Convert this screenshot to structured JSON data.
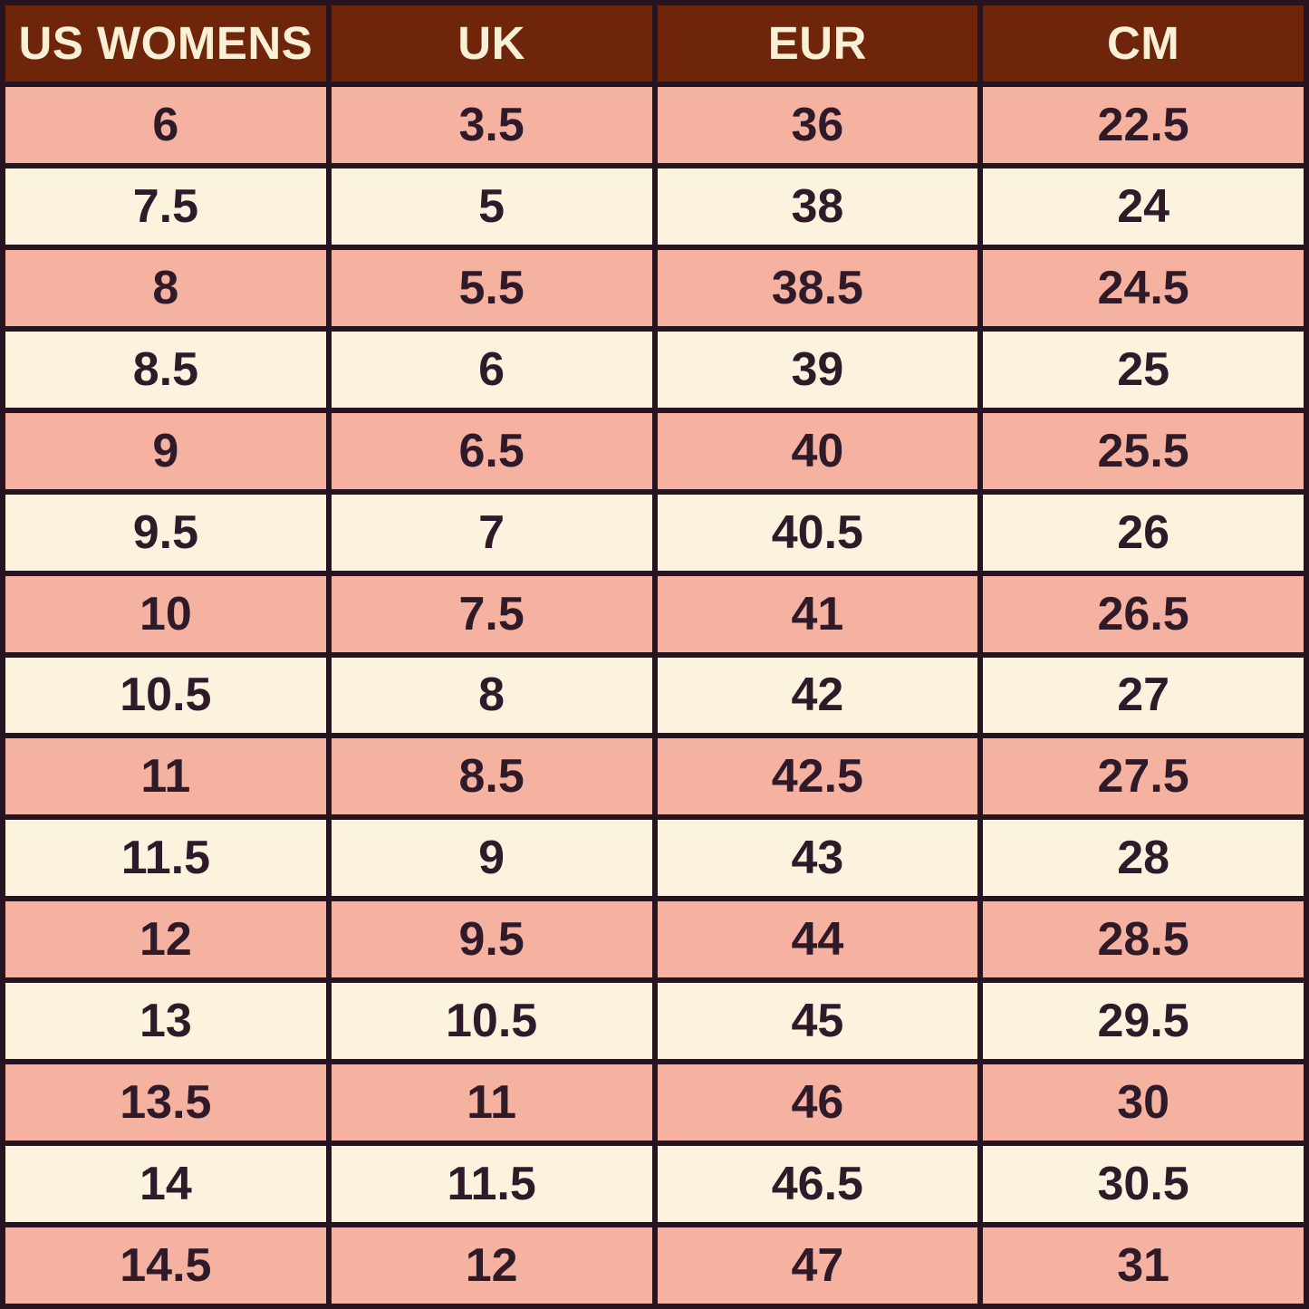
{
  "colors": {
    "header_bg": "#6E2509",
    "header_text": "#FAF0D6",
    "row_salmon": "#F5B2A0",
    "row_cream": "#FBF3DE",
    "cell_text": "#2E1A29",
    "border": "#261420"
  },
  "chart_data": {
    "type": "table",
    "columns": [
      "US WOMENS",
      "UK",
      "EUR",
      "CM"
    ],
    "rows": [
      [
        "6",
        "3.5",
        "36",
        "22.5"
      ],
      [
        "7.5",
        "5",
        "38",
        "24"
      ],
      [
        "8",
        "5.5",
        "38.5",
        "24.5"
      ],
      [
        "8.5",
        "6",
        "39",
        "25"
      ],
      [
        "9",
        "6.5",
        "40",
        "25.5"
      ],
      [
        "9.5",
        "7",
        "40.5",
        "26"
      ],
      [
        "10",
        "7.5",
        "41",
        "26.5"
      ],
      [
        "10.5",
        "8",
        "42",
        "27"
      ],
      [
        "11",
        "8.5",
        "42.5",
        "27.5"
      ],
      [
        "11.5",
        "9",
        "43",
        "28"
      ],
      [
        "12",
        "9.5",
        "44",
        "28.5"
      ],
      [
        "13",
        "10.5",
        "45",
        "29.5"
      ],
      [
        "13.5",
        "11",
        "46",
        "30"
      ],
      [
        "14",
        "11.5",
        "46.5",
        "30.5"
      ],
      [
        "14.5",
        "12",
        "47",
        "31"
      ]
    ]
  }
}
